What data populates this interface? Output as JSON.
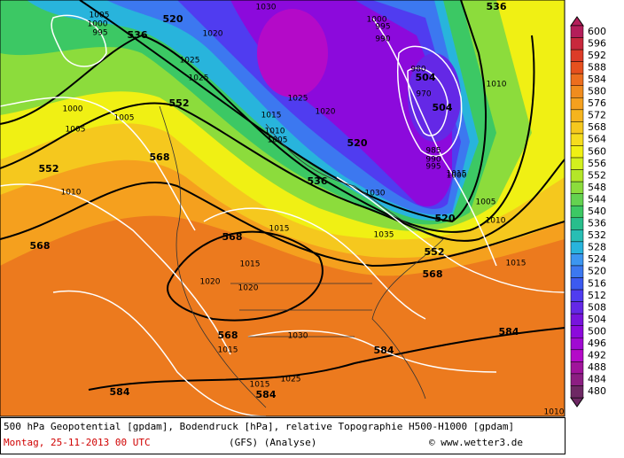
{
  "colorbar": {
    "levels": [
      600,
      596,
      592,
      588,
      584,
      580,
      576,
      572,
      568,
      564,
      560,
      556,
      552,
      548,
      544,
      540,
      536,
      532,
      528,
      524,
      520,
      516,
      512,
      508,
      504,
      500,
      496,
      492,
      488,
      484,
      480
    ],
    "colors": [
      "#b41e5a",
      "#c8283c",
      "#dc3c28",
      "#e6501e",
      "#ec6e1e",
      "#f08c1e",
      "#f5a01e",
      "#f5b41e",
      "#f5c81e",
      "#f5dc1e",
      "#f0f014",
      "#d2f01e",
      "#b4e628",
      "#8cdc3c",
      "#64d250",
      "#3cc864",
      "#28be8c",
      "#28beb4",
      "#28b4dc",
      "#3c96f0",
      "#3c78f0",
      "#3c5af0",
      "#503cf0",
      "#6428e6",
      "#7814dc",
      "#8c0adc",
      "#a00ad2",
      "#b40ac8",
      "#a0149b",
      "#8c1e82",
      "#6e2864"
    ]
  },
  "map_labels": [
    "520",
    "536",
    "552",
    "552",
    "568",
    "568",
    "568",
    "568",
    "584",
    "584",
    "584",
    "584",
    "536",
    "536",
    "520",
    "520",
    "504",
    "504",
    "552",
    "568",
    "1005",
    "1000",
    "995",
    "1000",
    "1005",
    "1005",
    "1010",
    "1020",
    "1025",
    "1030",
    "1025",
    "1015",
    "1010",
    "1005",
    "1020",
    "1025",
    "1030",
    "1035",
    "1015",
    "1015",
    "1020",
    "1020",
    "1015",
    "1030",
    "1015",
    "1025",
    "1015",
    "1010",
    "1000",
    "995",
    "990",
    "980",
    "970",
    "985",
    "990",
    "995",
    "1000",
    "1005",
    "1010",
    "1015",
    "1010"
  ],
  "caption": {
    "line1": "500 hPa Geopotential [gpdam], Bodendruck [hPa], relative Topographie H500-H1000 [gpdam]",
    "date": "Montag, 25-11-2013  00 UTC",
    "model": "(GFS)  (Analyse)",
    "credit": "© www.wetter3.de"
  }
}
